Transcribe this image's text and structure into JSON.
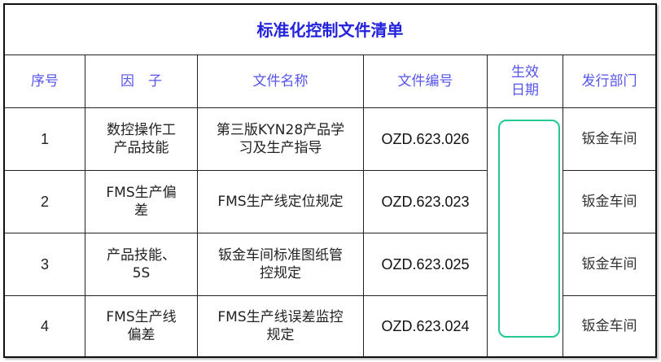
{
  "title": "标准化控制文件清单",
  "headers": [
    "序号",
    "因　子",
    "文件名称",
    "文件编号",
    "生效日期",
    "发行部门"
  ],
  "rows": [
    {
      "no": "1",
      "factor": "数控操作工产品技能",
      "name": "第三版KYN28产品学习及生产指导",
      "code": "OZD.623.026",
      "date": "",
      "dept": "钣金车间"
    },
    {
      "no": "2",
      "factor": "FMS生产偏差",
      "name": "FMS生产线定位规定",
      "code": "OZD.623.023",
      "date": "",
      "dept": "钣金车间"
    },
    {
      "no": "3",
      "factor": "产品技能、5S",
      "name": "钣金车间标准图纸管控规定",
      "code": "OZD.623.025",
      "date": "",
      "dept": "钣金车间"
    },
    {
      "no": "4",
      "factor": "FMS生产线偏差",
      "name": "FMS生产线误差监控规定",
      "code": "OZD.623.024",
      "date": "",
      "dept": "钣金车间"
    }
  ],
  "colors": {
    "title": "#2222dd",
    "header": "#5555ee",
    "highlight_box": "#22c995"
  }
}
